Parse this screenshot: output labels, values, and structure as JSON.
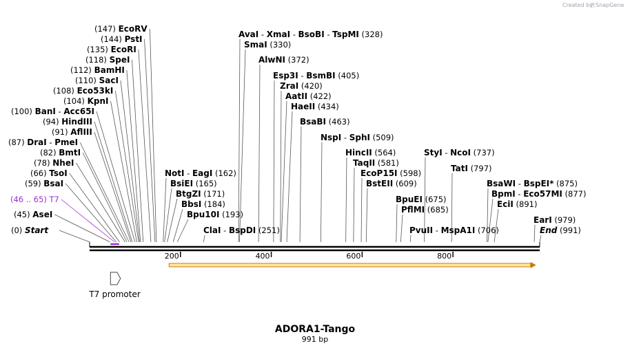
{
  "credit": {
    "prefix": "Created by",
    "brand": "SnapGene"
  },
  "title": "ADORA1-Tango",
  "subtitle": "991 bp",
  "total_bp": 991,
  "feature_label": "T7 promoter",
  "colors": {
    "t7": "#9b30d0",
    "orf_fill": "#ffe6a8",
    "orf_stroke": "#cc7a00",
    "line": "#555555",
    "brand": "#9aa4ad"
  },
  "ticks": [
    {
      "bp": 200,
      "label": "200"
    },
    {
      "bp": 400,
      "label": "400"
    },
    {
      "bp": 600,
      "label": "600"
    },
    {
      "bp": 800,
      "label": "800"
    }
  ],
  "sites": [
    {
      "names": [
        "EcoRV"
      ],
      "pos": "(147)",
      "bp": 147
    },
    {
      "names": [
        "PstI"
      ],
      "pos": "(144)",
      "bp": 144
    },
    {
      "names": [
        "EcoRI"
      ],
      "pos": "(135)",
      "bp": 135
    },
    {
      "names": [
        "SpeI"
      ],
      "pos": "(118)",
      "bp": 118
    },
    {
      "names": [
        "BamHI"
      ],
      "pos": "(112)",
      "bp": 112
    },
    {
      "names": [
        "SacI"
      ],
      "pos": "(110)",
      "bp": 110
    },
    {
      "names": [
        "Eco53kI"
      ],
      "pos": "(108)",
      "bp": 108
    },
    {
      "names": [
        "KpnI"
      ],
      "pos": "(104)",
      "bp": 104
    },
    {
      "names": [
        "BanI",
        "Acc65I"
      ],
      "pos": "(100)",
      "bp": 100
    },
    {
      "names": [
        "HindIII"
      ],
      "pos": "(94)",
      "bp": 94
    },
    {
      "names": [
        "AflIII"
      ],
      "pos": "(91)",
      "bp": 91
    },
    {
      "names": [
        "DraI",
        "PmeI"
      ],
      "pos": "(87)",
      "bp": 87
    },
    {
      "names": [
        "BmtI"
      ],
      "pos": "(82)",
      "bp": 82
    },
    {
      "names": [
        "NheI"
      ],
      "pos": "(78)",
      "bp": 78
    },
    {
      "names": [
        "TsoI"
      ],
      "pos": "(66)",
      "bp": 66
    },
    {
      "names": [
        "BsaI"
      ],
      "pos": "(59)",
      "bp": 59
    },
    {
      "names": [
        "T7"
      ],
      "pos": "(46 .. 65)",
      "bp": 55,
      "feature": true
    },
    {
      "names": [
        "AseI"
      ],
      "pos": "(45)",
      "bp": 45
    },
    {
      "names": [
        "Start"
      ],
      "pos": "(0)",
      "bp": 0,
      "italic": true
    },
    {
      "names": [
        "AvaI",
        "XmaI",
        "BsoBI",
        "TspMI"
      ],
      "pos": "(328)",
      "bp": 328
    },
    {
      "names": [
        "SmaI"
      ],
      "pos": "(330)",
      "bp": 330
    },
    {
      "names": [
        "AlwNI"
      ],
      "pos": "(372)",
      "bp": 372
    },
    {
      "names": [
        "Esp3I",
        "BsmBI"
      ],
      "pos": "(405)",
      "bp": 405
    },
    {
      "names": [
        "ZraI"
      ],
      "pos": "(420)",
      "bp": 420
    },
    {
      "names": [
        "AatII"
      ],
      "pos": "(422)",
      "bp": 422
    },
    {
      "names": [
        "HaeII"
      ],
      "pos": "(434)",
      "bp": 434
    },
    {
      "names": [
        "BsaBI"
      ],
      "pos": "(463)",
      "bp": 463
    },
    {
      "names": [
        "NspI",
        "SphI"
      ],
      "pos": "(509)",
      "bp": 509
    },
    {
      "names": [
        "HincII"
      ],
      "pos": "(564)",
      "bp": 564
    },
    {
      "names": [
        "TaqII"
      ],
      "pos": "(581)",
      "bp": 581
    },
    {
      "names": [
        "EcoP15I"
      ],
      "pos": "(598)",
      "bp": 598
    },
    {
      "names": [
        "BstEII"
      ],
      "pos": "(609)",
      "bp": 609
    },
    {
      "names": [
        "StyI",
        "NcoI"
      ],
      "pos": "(737)",
      "bp": 737
    },
    {
      "names": [
        "TatI"
      ],
      "pos": "(797)",
      "bp": 797
    },
    {
      "names": [
        "BpuEI"
      ],
      "pos": "(675)",
      "bp": 675
    },
    {
      "names": [
        "PflMI"
      ],
      "pos": "(685)",
      "bp": 685
    },
    {
      "names": [
        "PvuII",
        "MspA1I"
      ],
      "pos": "(706)",
      "bp": 706
    },
    {
      "names": [
        "NotI",
        "EagI"
      ],
      "pos": "(162)",
      "bp": 162
    },
    {
      "names": [
        "BsiEI"
      ],
      "pos": "(165)",
      "bp": 165
    },
    {
      "names": [
        "BtgZI"
      ],
      "pos": "(171)",
      "bp": 171
    },
    {
      "names": [
        "BbsI"
      ],
      "pos": "(184)",
      "bp": 184
    },
    {
      "names": [
        "Bpu10I"
      ],
      "pos": "(193)",
      "bp": 193
    },
    {
      "names": [
        "ClaI",
        "BspDI"
      ],
      "pos": "(251)",
      "bp": 251
    },
    {
      "names": [
        "BsaWI",
        "BspEI*"
      ],
      "pos": "(875)",
      "bp": 875
    },
    {
      "names": [
        "BpmI",
        "Eco57MI"
      ],
      "pos": "(877)",
      "bp": 877
    },
    {
      "names": [
        "EciI"
      ],
      "pos": "(891)",
      "bp": 891
    },
    {
      "names": [
        "EarI"
      ],
      "pos": "(979)",
      "bp": 979
    },
    {
      "names": [
        "End"
      ],
      "pos": "(991)",
      "bp": 991,
      "italic": true
    }
  ]
}
